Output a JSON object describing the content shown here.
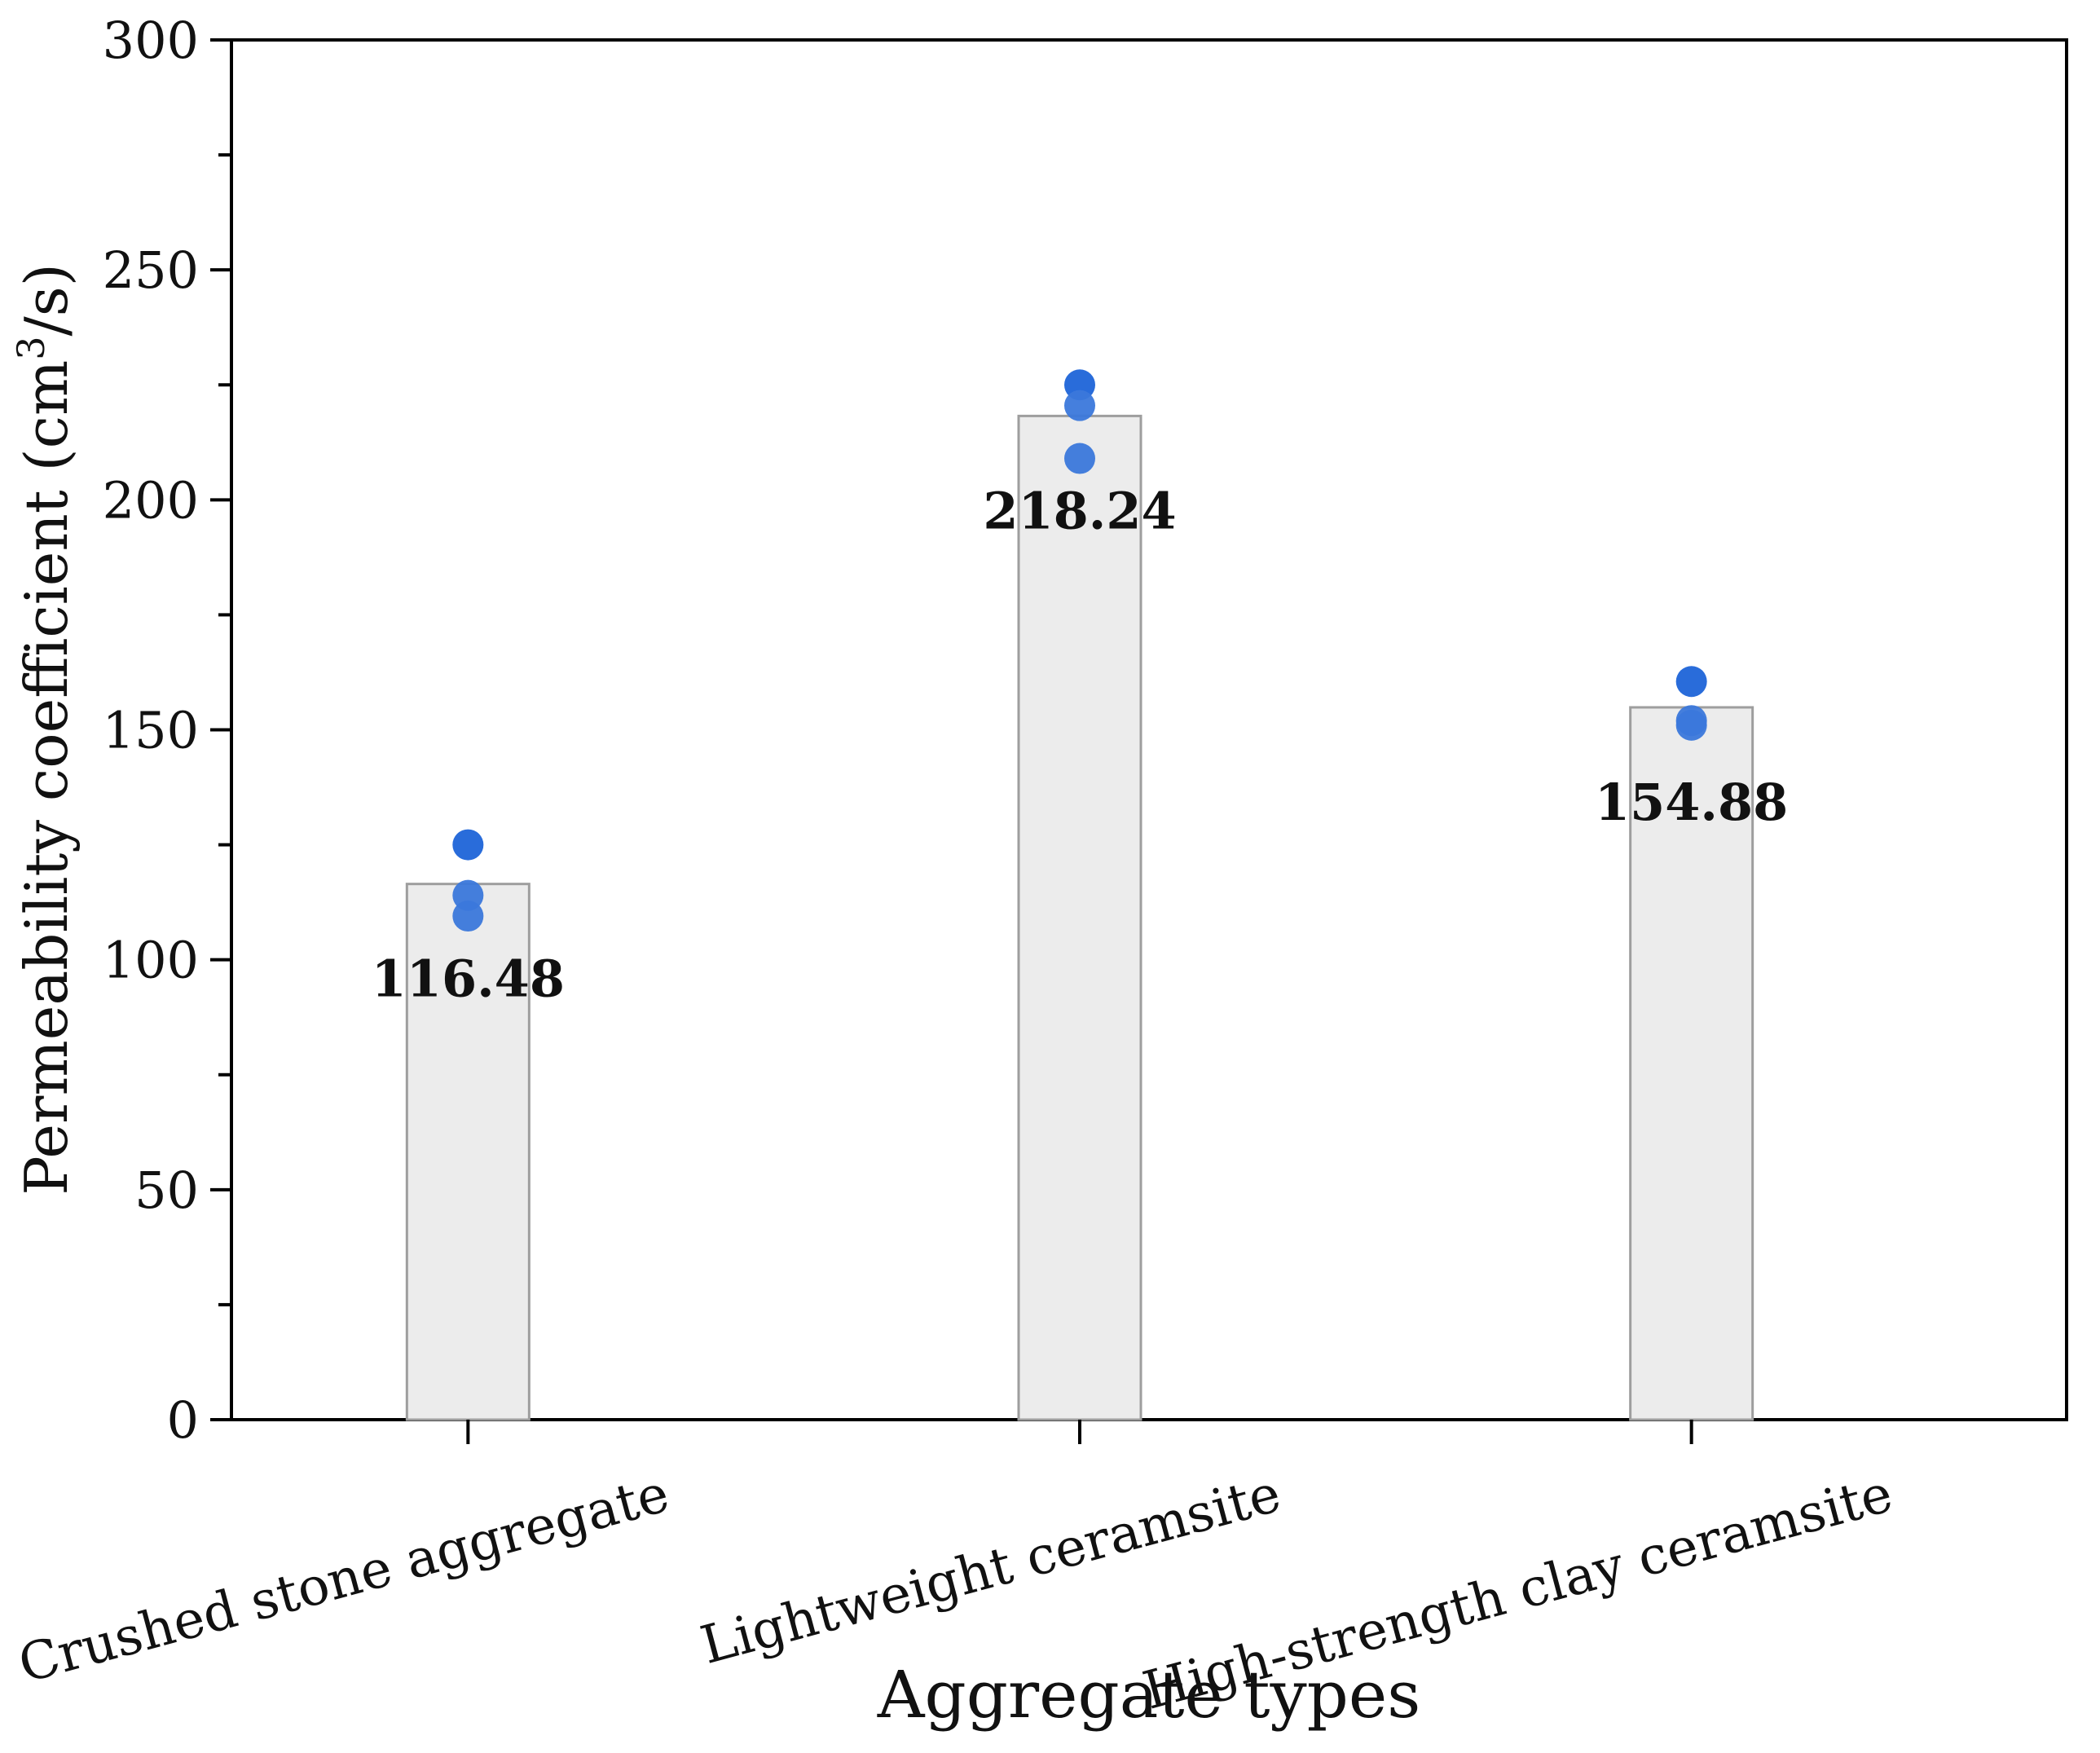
{
  "chart_data": {
    "type": "bar",
    "title": "",
    "xlabel": "Aggregate types",
    "ylabel": "Permeability coefficient (cm",
    "ylabel_superscript": "3",
    "ylabel_suffix": "/s)",
    "ylim": [
      0,
      300
    ],
    "yticks": [
      0,
      50,
      100,
      150,
      200,
      250,
      300
    ],
    "categories": [
      "Crushed stone aggregate",
      "Lightweight ceramsite",
      "High-strength clay ceramsite"
    ],
    "values": [
      116.48,
      218.24,
      154.88
    ],
    "value_labels": [
      "116.48",
      "218.24",
      "154.88"
    ],
    "points": [
      [
        125,
        114,
        109.5
      ],
      [
        225,
        220.5,
        209
      ],
      [
        160.5,
        152,
        151
      ]
    ],
    "colors": {
      "bar_fill": "#ececec",
      "bar_stroke": "#9e9e9e",
      "point": "#1d64d8",
      "point_alt": "#3b78db",
      "axis": "#000000"
    }
  }
}
